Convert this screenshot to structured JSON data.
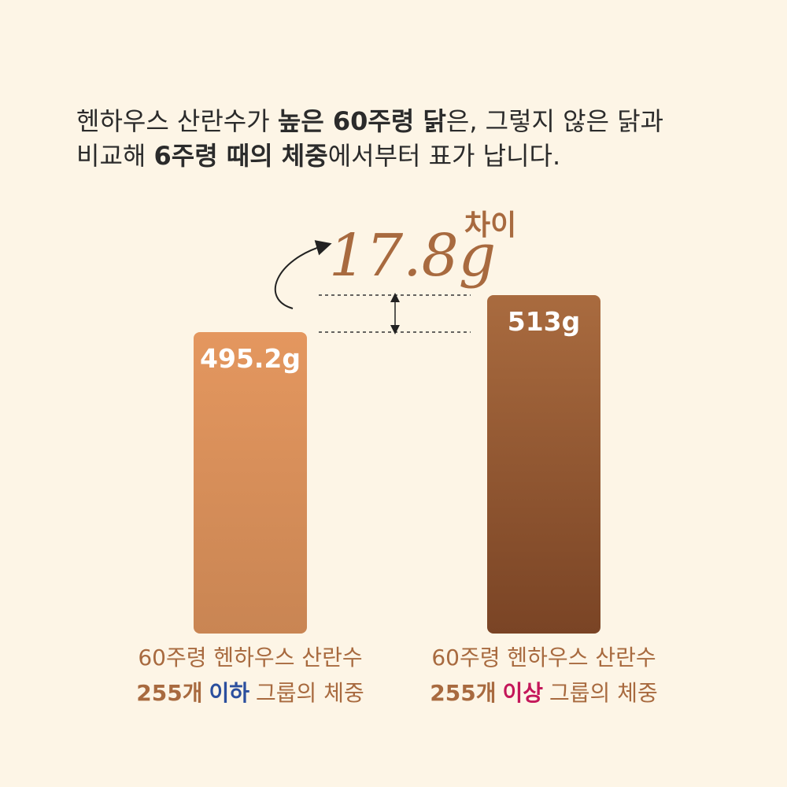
{
  "chart_data": {
    "type": "bar",
    "title": [
      [
        {
          "text": "헨하우스 산란수가 ",
          "bold": false
        },
        {
          "text": "높은 60주령 닭",
          "bold": true
        },
        {
          "text": "은, 그렇지 않은 닭과",
          "bold": false
        }
      ],
      [
        {
          "text": "비교해 ",
          "bold": false
        },
        {
          "text": "6주령 때의 체중",
          "bold": true
        },
        {
          "text": "에서부터 표가 납니다.",
          "bold": false
        }
      ]
    ],
    "categories": [
      [
        "60주령 헨하우스 산란수",
        "255개",
        "이하",
        "그룹의 체중"
      ],
      [
        "60주령 헨하우스 산란수",
        "255개",
        "이상",
        "그룹의 체중"
      ]
    ],
    "highlight_colors": [
      "#2b4f9e",
      "#c4175a"
    ],
    "label_color": "#a86a3f",
    "values": [
      495.2,
      513
    ],
    "value_labels": [
      "495.2g",
      "513g"
    ],
    "colors": [
      [
        "#e4975f",
        "#c98553"
      ],
      [
        "#a96b3f",
        "#7a4425"
      ]
    ],
    "ylim": [
      350,
      513
    ],
    "annotation": {
      "value": 17.8,
      "label": "17.8g",
      "suffix": "차이",
      "color": "#a86a3f"
    }
  }
}
